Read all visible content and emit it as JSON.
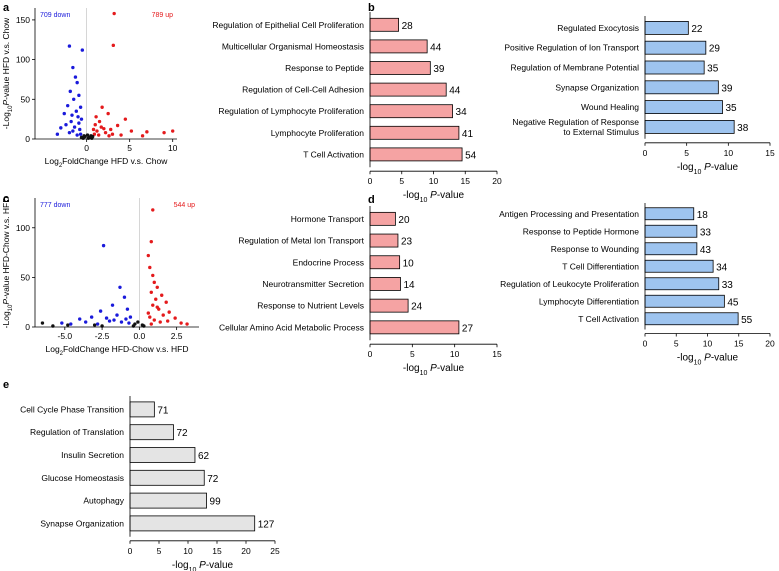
{
  "panel_letters": [
    "a",
    "b",
    "c",
    "d",
    "e"
  ],
  "colors": {
    "pink_bar": "#f5a3a3",
    "blue_bar": "#9ec4ef",
    "grey_bar": "#e4e4e4",
    "up_point": "#e41a1c",
    "down_point": "#1a1adb",
    "ns_point": "#111111",
    "up_text": "#e41a1c",
    "down_text": "#1a1adb"
  },
  "chart_data": [
    {
      "id": "a",
      "type": "scatter",
      "title": "",
      "xlabel": "Log2FoldChange HFD v.s. Chow",
      "xlabel_parts": [
        "Log",
        "2",
        "FoldChange HFD v.s. Chow"
      ],
      "ylabel": "-Log10P-value HFD v.s. Chow",
      "ylabel_parts": [
        "-Log",
        "10",
        "P",
        "-value HFD v.s. Chow"
      ],
      "xlim": [
        -6,
        10.5
      ],
      "ylim": [
        0,
        165
      ],
      "xticks": [
        0,
        5,
        10
      ],
      "yticks": [
        0,
        50,
        100,
        150
      ],
      "down_label": "709 down",
      "up_label": "789 up",
      "series": [
        {
          "name": "up",
          "points": [
            [
              3.2,
              158
            ],
            [
              3.1,
              118
            ],
            [
              10.0,
              10
            ],
            [
              9.0,
              8
            ],
            [
              7.0,
              9
            ],
            [
              5.2,
              10
            ],
            [
              4.5,
              25
            ],
            [
              3.6,
              17
            ],
            [
              2.5,
              32
            ],
            [
              1.8,
              40
            ],
            [
              2.0,
              13
            ],
            [
              1.2,
              10
            ],
            [
              1.5,
              22
            ],
            [
              2.2,
              8
            ],
            [
              3.0,
              6
            ],
            [
              1.0,
              18
            ],
            [
              0.9,
              6
            ],
            [
              1.4,
              5
            ],
            [
              2.6,
              4
            ],
            [
              4.0,
              5
            ],
            [
              6.5,
              4
            ],
            [
              0.8,
              12
            ],
            [
              1.1,
              28
            ],
            [
              1.7,
              15
            ],
            [
              2.8,
              12
            ]
          ]
        },
        {
          "name": "down",
          "points": [
            [
              -2.0,
              117
            ],
            [
              -0.5,
              112
            ],
            [
              -1.6,
              90
            ],
            [
              -1.3,
              78
            ],
            [
              -1.1,
              71
            ],
            [
              -1.9,
              60
            ],
            [
              -0.9,
              55
            ],
            [
              -1.5,
              50
            ],
            [
              -2.2,
              42
            ],
            [
              -0.7,
              40
            ],
            [
              -1.2,
              35
            ],
            [
              -2.6,
              32
            ],
            [
              -1.0,
              28
            ],
            [
              -0.6,
              25
            ],
            [
              -1.8,
              22
            ],
            [
              -2.4,
              18
            ],
            [
              -1.4,
              15
            ],
            [
              -3.0,
              14
            ],
            [
              -0.8,
              12
            ],
            [
              -1.6,
              10
            ],
            [
              -2.0,
              8
            ],
            [
              -0.7,
              6
            ],
            [
              -1.1,
              5
            ],
            [
              -3.4,
              6
            ],
            [
              -1.7,
              30
            ],
            [
              -0.9,
              20
            ]
          ]
        },
        {
          "name": "ns",
          "points": [
            [
              -0.2,
              3
            ],
            [
              0.3,
              2
            ],
            [
              0.5,
              4
            ],
            [
              -0.4,
              1
            ],
            [
              0.1,
              5
            ],
            [
              0.6,
              1
            ],
            [
              -0.6,
              2
            ],
            [
              0.2,
              1
            ],
            [
              0.7,
              3
            ],
            [
              -0.3,
              4
            ]
          ]
        }
      ]
    },
    {
      "id": "b-left",
      "type": "bar",
      "orientation": "horizontal",
      "categories": [
        "Regulation of Epithelial Cell Proliferation",
        "Multicellular Organismal Homeostasis",
        "Response to Peptide",
        "Regulation of Cell-Cell Adhesion",
        "Regulation of Lymphocyte Proliferation",
        "Lymphocyte Proliferation",
        "T Cell Activation"
      ],
      "values": [
        4.5,
        9.0,
        9.5,
        12.0,
        13.0,
        14.0,
        14.5
      ],
      "labels": [
        "28",
        "44",
        "39",
        "44",
        "34",
        "41",
        "54"
      ],
      "xlim": [
        0,
        20
      ],
      "xticks": [
        0,
        5,
        10,
        15,
        20
      ],
      "xlabel": "-log10 P-value"
    },
    {
      "id": "b-right",
      "type": "bar",
      "orientation": "horizontal",
      "categories": [
        "Regulated Exocytosis",
        "Positive Regulation of Ion Transport",
        "Regulation of Membrane Potential",
        "Synapse Organization",
        "Wound Healing",
        "Negative Regulation of Response|to External Stimulus"
      ],
      "values": [
        5.2,
        7.3,
        7.1,
        8.8,
        9.3,
        10.7
      ],
      "labels": [
        "22",
        "29",
        "35",
        "39",
        "35",
        "38"
      ],
      "xlim": [
        0,
        15
      ],
      "xticks": [
        0,
        5,
        10,
        15
      ],
      "xlabel": "-log10 P-value"
    },
    {
      "id": "c",
      "type": "scatter",
      "title": "",
      "xlabel": "Log2FoldChange HFD-Chow v.s. HFD",
      "xlabel_parts": [
        "Log",
        "2",
        "FoldChange HFD-Chow v.s. HFD"
      ],
      "ylabel": "-Log10P-value HFD-Chow v.s. HFD",
      "ylabel_parts": [
        "-Log",
        "10",
        "P",
        "-value HFD-Chow v.s. HFD"
      ],
      "xlim": [
        -7,
        4
      ],
      "ylim": [
        0,
        130
      ],
      "xticks": [
        -5.0,
        -2.5,
        0.0,
        2.5
      ],
      "xtick_labels": [
        "-5.0",
        "-2.5",
        "0.0",
        "2.5"
      ],
      "yticks": [
        0,
        50,
        100
      ],
      "down_label": "777 down",
      "up_label": "544 up",
      "series": [
        {
          "name": "up",
          "points": [
            [
              0.9,
              118
            ],
            [
              0.8,
              86
            ],
            [
              0.6,
              72
            ],
            [
              0.7,
              60
            ],
            [
              0.9,
              52
            ],
            [
              1.0,
              45
            ],
            [
              1.2,
              40
            ],
            [
              0.8,
              35
            ],
            [
              1.5,
              32
            ],
            [
              1.1,
              28
            ],
            [
              1.8,
              25
            ],
            [
              0.9,
              22
            ],
            [
              1.3,
              18
            ],
            [
              2.0,
              15
            ],
            [
              1.6,
              12
            ],
            [
              0.7,
              10
            ],
            [
              2.4,
              9
            ],
            [
              1.0,
              7
            ],
            [
              1.4,
              5
            ],
            [
              2.8,
              4
            ],
            [
              0.8,
              3
            ],
            [
              1.9,
              6
            ],
            [
              0.6,
              14
            ],
            [
              1.2,
              20
            ],
            [
              3.2,
              3
            ]
          ]
        },
        {
          "name": "down",
          "points": [
            [
              -2.4,
              82
            ],
            [
              -1.3,
              40
            ],
            [
              -1.0,
              30
            ],
            [
              -1.8,
              22
            ],
            [
              -2.6,
              16
            ],
            [
              -0.8,
              18
            ],
            [
              -1.5,
              12
            ],
            [
              -3.2,
              10
            ],
            [
              -0.9,
              8
            ],
            [
              -2.0,
              6
            ],
            [
              -4.0,
              8
            ],
            [
              -1.2,
              5
            ],
            [
              -5.2,
              4
            ],
            [
              -2.8,
              3
            ],
            [
              -0.7,
              4
            ],
            [
              -3.6,
              5
            ],
            [
              -1.7,
              7
            ],
            [
              -0.6,
              10
            ],
            [
              -2.2,
              9
            ],
            [
              -4.6,
              3
            ]
          ]
        },
        {
          "name": "ns",
          "points": [
            [
              -6.5,
              4
            ],
            [
              -4.8,
              2
            ],
            [
              -3.0,
              2
            ],
            [
              -0.3,
              3
            ],
            [
              0.2,
              2
            ],
            [
              -0.1,
              5
            ],
            [
              0.3,
              1
            ],
            [
              -0.4,
              1
            ],
            [
              -5.8,
              1
            ],
            [
              -2.5,
              1
            ]
          ]
        }
      ]
    },
    {
      "id": "d-left",
      "type": "bar",
      "orientation": "horizontal",
      "categories": [
        "Hormone Transport",
        "Regulation of Metal Ion Transport",
        "Endocrine Process",
        "Neurotransmitter Secretion",
        "Response to Nutrient Levels",
        "Cellular Amino Acid Metabolic Process"
      ],
      "values": [
        3.0,
        3.3,
        3.5,
        3.6,
        4.5,
        10.5
      ],
      "labels": [
        "20",
        "23",
        "10",
        "14",
        "24",
        "27"
      ],
      "xlim": [
        0,
        15
      ],
      "xticks": [
        0,
        5,
        10,
        15
      ],
      "xlabel": "-log10 P-value"
    },
    {
      "id": "d-right",
      "type": "bar",
      "orientation": "horizontal",
      "categories": [
        "Antigen Processing and Presentation",
        "Response to Peptide Hormone",
        "Response to Wounding",
        "T Cell Differentiation",
        "Regulation of Leukocyte Proliferation",
        "Lymphocyte Differentiation",
        "T Cell Activation"
      ],
      "values": [
        7.8,
        8.3,
        8.3,
        10.9,
        11.8,
        12.7,
        14.9
      ],
      "labels": [
        "18",
        "33",
        "43",
        "34",
        "33",
        "45",
        "55"
      ],
      "xlim": [
        0,
        20
      ],
      "xticks": [
        0,
        5,
        10,
        15,
        20
      ],
      "xlabel": "-log10 P-value"
    },
    {
      "id": "e",
      "type": "bar",
      "orientation": "horizontal",
      "categories": [
        "Cell Cycle Phase Transition",
        "Regulation of Translation",
        "Insulin Secretion",
        "Glucose Homeostasis",
        "Autophagy",
        "Synapse Organization"
      ],
      "values": [
        4.2,
        7.5,
        11.2,
        12.8,
        13.2,
        21.5
      ],
      "labels": [
        "71",
        "72",
        "62",
        "72",
        "99",
        "127"
      ],
      "xlim": [
        0,
        25
      ],
      "xticks": [
        0,
        5,
        10,
        15,
        20,
        25
      ],
      "xlabel": "-log10 P-value"
    }
  ]
}
